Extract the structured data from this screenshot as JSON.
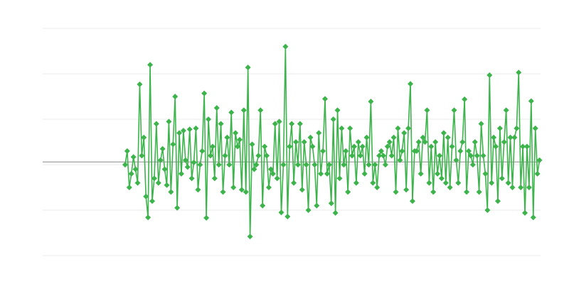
{
  "chart_data": {
    "type": "line",
    "title": "",
    "xlabel": "",
    "ylabel": "",
    "ylim": [
      -2,
      3
    ],
    "xlim": [
      -39.6,
      199.5
    ],
    "grid": true,
    "y_gridlines": [
      -2,
      -1,
      0,
      1,
      2,
      3
    ],
    "reference_line": 0.06,
    "marker": "diamond",
    "colors": {
      "series": "#3cb44b",
      "grid": "#ebebeb",
      "reference": "#9e9e9e"
    },
    "series": [
      {
        "values": [
          0.0,
          0.3,
          -0.5,
          -0.2,
          0.17,
          -0.1,
          -0.4,
          1.77,
          0.2,
          0.6,
          -0.7,
          -1.16,
          2.2,
          -0.8,
          -0.3,
          0.9,
          -0.4,
          0.1,
          0.35,
          -0.1,
          -0.45,
          0.95,
          -0.6,
          0.45,
          1.5,
          -0.95,
          0.7,
          -0.2,
          0.75,
          0.1,
          -0.05,
          0.78,
          -0.3,
          0.05,
          0.8,
          -0.55,
          0.0,
          0.3,
          1.57,
          -1.17,
          1.0,
          0.2,
          0.4,
          -0.3,
          1.25,
          0.0,
          0.9,
          -0.6,
          0.2,
          0.6,
          0.0,
          1.15,
          -0.5,
          0.7,
          0.4,
          0.55,
          -0.55,
          1.2,
          -0.6,
          2.14,
          -1.58,
          0.45,
          -0.1,
          0.0,
          0.2,
          1.2,
          -0.9,
          0.4,
          0.2,
          -0.5,
          -0.1,
          -0.2,
          0.9,
          -0.3,
          0.95,
          -1.05,
          0.0,
          2.6,
          -1.14,
          0.4,
          0.9,
          -0.4,
          0.5,
          0.0,
          0.9,
          -0.55,
          0.5,
          0.0,
          -1.0,
          0.6,
          0.4,
          0.0,
          -0.9,
          0.7,
          -0.2,
          0.3,
          1.45,
          -0.2,
          0.0,
          -0.85,
          1.0,
          -1.06,
          1.2,
          -0.3,
          0.8,
          0.0,
          0.3,
          -0.6,
          0.8,
          0.2,
          0.4,
          -0.4,
          0.5,
          0.2,
          0.4,
          -0.2,
          0.6,
          0.0,
          1.39,
          -0.4,
          0.0,
          -0.5,
          0.2,
          0.3,
          0.2,
          0.0,
          0.4,
          0.5,
          0.2,
          0.6,
          -0.6,
          0.8,
          0.1,
          0.3,
          0.7,
          -0.55,
          0.8,
          1.78,
          -0.8,
          0.3,
          0.3,
          0.5,
          -0.2,
          0.6,
          0.5,
          1.2,
          -0.4,
          0.4,
          -0.6,
          0.5,
          -0.2,
          0.2,
          -0.3,
          0.7,
          -0.4,
          0.6,
          -0.5,
          0.4,
          1.2,
          0.1,
          -0.4,
          0.3,
          0.5,
          1.44,
          -0.6,
          0.3,
          0.2,
          0.0,
          0.5,
          0.2,
          -0.6,
          0.9,
          0.2,
          -0.2,
          -1.0,
          1.97,
          -0.4,
          0.6,
          0.4,
          -0.8,
          0.8,
          -0.3,
          0.5,
          1.2,
          -0.4,
          0.6,
          -0.5,
          0.6,
          0.8,
          2.03,
          -0.5,
          0.4,
          -1.06,
          0.4,
          -0.5,
          1.4,
          -1.16,
          0.8,
          -0.2,
          0.1
        ]
      }
    ]
  }
}
